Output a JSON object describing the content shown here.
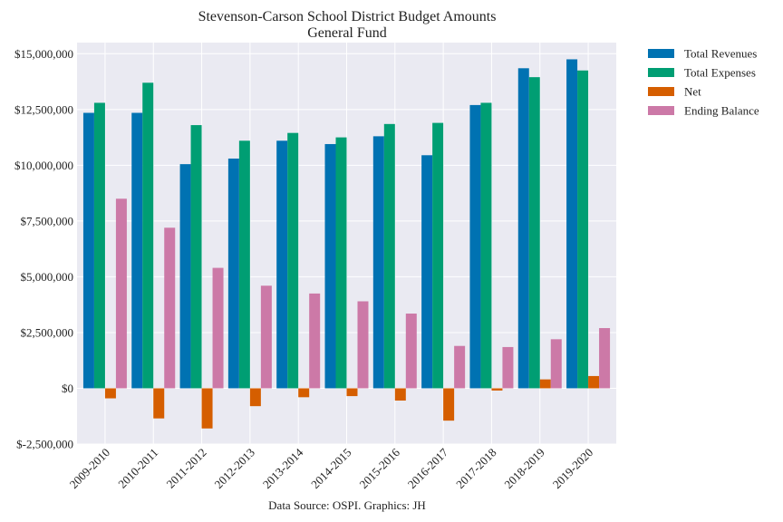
{
  "chart_data": {
    "type": "bar",
    "title": "Stevenson-Carson School District Budget Amounts",
    "subtitle": "General Fund",
    "xlabel": "",
    "ylabel": "",
    "caption": "Data Source: OSPI. Graphics: JH",
    "categories": [
      "2009-2010",
      "2010-2011",
      "2011-2012",
      "2012-2013",
      "2013-2014",
      "2014-2015",
      "2015-2016",
      "2016-2017",
      "2017-2018",
      "2018-2019",
      "2019-2020"
    ],
    "ylim": [
      -2500000,
      15500000
    ],
    "yticks": [
      -2500000,
      0,
      2500000,
      5000000,
      7500000,
      10000000,
      12500000,
      15000000
    ],
    "ytick_labels": [
      "$-2,500,000",
      "$0",
      "$2,500,000",
      "$5,000,000",
      "$7,500,000",
      "$10,000,000",
      "$12,500,000",
      "$15,000,000"
    ],
    "grid": true,
    "legend_position": "outside-top-right",
    "series": [
      {
        "name": "Total Revenues",
        "color": "#0072B2",
        "values": [
          12350000,
          12350000,
          10050000,
          10300000,
          11100000,
          10950000,
          11300000,
          10450000,
          12700000,
          14350000,
          14750000
        ]
      },
      {
        "name": "Total Expenses",
        "color": "#009E73",
        "values": [
          12800000,
          13700000,
          11800000,
          11100000,
          11450000,
          11250000,
          11850000,
          11900000,
          12800000,
          13950000,
          14250000
        ]
      },
      {
        "name": "Net",
        "color": "#D55E00",
        "values": [
          -450000,
          -1350000,
          -1800000,
          -800000,
          -400000,
          -350000,
          -550000,
          -1450000,
          -100000,
          400000,
          550000
        ]
      },
      {
        "name": "Ending Balance",
        "color": "#CC79A7",
        "values": [
          8500000,
          7200000,
          5400000,
          4600000,
          4250000,
          3900000,
          3350000,
          1900000,
          1850000,
          2200000,
          2700000
        ]
      }
    ]
  },
  "colors": {
    "plot_background": "#EAEAF2",
    "grid": "#ffffff"
  }
}
